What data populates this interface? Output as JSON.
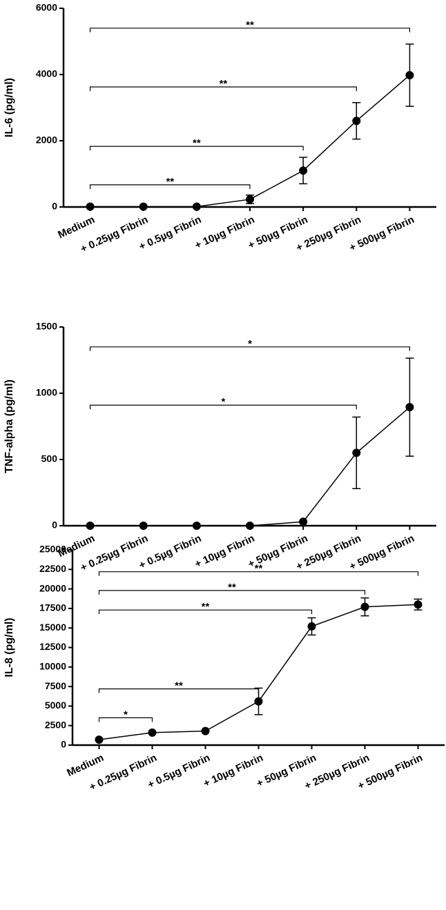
{
  "chart_data": [
    {
      "type": "line",
      "y_label": "IL-6 (pg/ml)",
      "color": "#000000",
      "categories": [
        "Medium",
        "+ 0.25µg Fibrin",
        "+ 0.5µg Fibrin",
        "+ 10µg Fibrin",
        "+ 50µg Fibrin",
        "+ 250µg Fibrin",
        "+ 500µg Fibrin"
      ],
      "values": [
        10,
        10,
        10,
        230,
        1100,
        2600,
        3980
      ],
      "errors": [
        0,
        0,
        0,
        130,
        400,
        550,
        940
      ],
      "ylim": [
        0,
        6000
      ],
      "yticks": [
        0,
        2000,
        4000,
        6000
      ],
      "brackets": [
        {
          "from": 0,
          "to": 3,
          "y": 670,
          "label": "**"
        },
        {
          "from": 0,
          "to": 4,
          "y": 1830,
          "label": "**"
        },
        {
          "from": 0,
          "to": 5,
          "y": 3625,
          "label": "**"
        },
        {
          "from": 0,
          "to": 6,
          "y": 5400,
          "label": "**"
        }
      ]
    },
    {
      "type": "line",
      "y_label": "TNF-alpha (pg/ml)",
      "color": "#000000",
      "categories": [
        "Medium",
        "+ 0.25µg Fibrin",
        "+ 0.5µg Fibrin",
        "+ 10µg Fibrin",
        "+ 50µg Fibrin",
        "+ 250µg Fibrin",
        "+ 500µg Fibrin"
      ],
      "values": [
        0,
        0,
        0,
        0,
        30,
        550,
        895
      ],
      "errors": [
        0,
        0,
        0,
        0,
        0,
        270,
        370
      ],
      "ylim": [
        0,
        1500
      ],
      "yticks": [
        0,
        500,
        1000,
        1500
      ],
      "brackets": [
        {
          "from": 0,
          "to": 5,
          "y": 910,
          "label": "*"
        },
        {
          "from": 0,
          "to": 6,
          "y": 1350,
          "label": "*"
        }
      ]
    },
    {
      "type": "line",
      "y_label": "IL-8 (pg/ml)",
      "color": "#000000",
      "categories": [
        "Medium",
        "+ 0.25µg Fibrin",
        "+ 0.5µg Fibrin",
        "+ 10µg Fibrin",
        "+ 50µg Fibrin",
        "+ 250µg Fibrin",
        "+ 500µg Fibrin"
      ],
      "values": [
        700,
        1600,
        1800,
        5600,
        15200,
        17700,
        18000
      ],
      "errors": [
        0,
        0,
        0,
        1700,
        1100,
        1150,
        700
      ],
      "ylim": [
        0,
        25000
      ],
      "yticks": [
        0,
        2500,
        5000,
        7500,
        10000,
        12500,
        15000,
        17500,
        20000,
        22500,
        25000
      ],
      "brackets": [
        {
          "from": 0,
          "to": 1,
          "y": 3500,
          "label": "*"
        },
        {
          "from": 0,
          "to": 3,
          "y": 7200,
          "label": "**"
        },
        {
          "from": 0,
          "to": 4,
          "y": 17300,
          "label": "**"
        },
        {
          "from": 0,
          "to": 5,
          "y": 19800,
          "label": "**"
        },
        {
          "from": 0,
          "to": 6,
          "y": 22200,
          "label": "**"
        }
      ]
    }
  ]
}
